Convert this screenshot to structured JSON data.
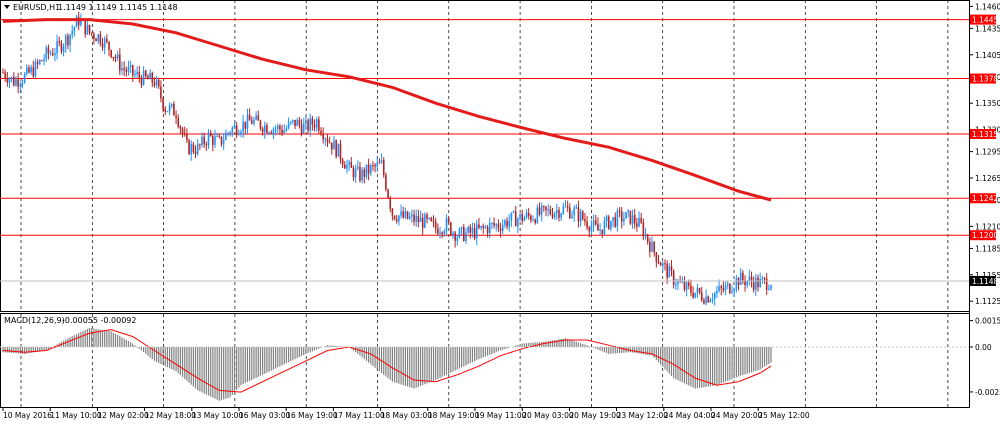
{
  "header": {
    "symbol": "EURUSD,H1",
    "ohlc": "1.1149 1.1149 1.1145 1.1148",
    "dropdown_icon": "triangle-down-icon"
  },
  "macd_header": {
    "label": "MACD(12,26,9)",
    "values": "-0.00055 -0.00092"
  },
  "colors": {
    "background": "#ffffff",
    "bull_candle": "#1e90ff",
    "bear_candle": "#b22222",
    "moving_average": "#e31b1b",
    "horizontal_levels": "#ff0000",
    "grid": "#000000",
    "histogram": "#808080",
    "signal_line": "#ff0000"
  },
  "price_axis": {
    "ticks": [
      "1.1460",
      "1.1435",
      "1.1405",
      "1.1380",
      "1.1350",
      "1.1320",
      "1.1295",
      "1.1265",
      "1.1240",
      "1.1210",
      "1.1185",
      "1.1155",
      "1.1125"
    ]
  },
  "level_tags": [
    "1.1445",
    "1.1378",
    "1.1315",
    "1.1242",
    "1.1200",
    "1.1148"
  ],
  "macd_axis": {
    "ticks": [
      "0.00152",
      "0.00",
      "-0.00259"
    ]
  },
  "time_axis": {
    "labels": [
      "10 May 2016",
      "11 May 10:00",
      "12 May 02:00",
      "12 May 18:00",
      "13 May 10:00",
      "16 May 03:00",
      "16 May 19:00",
      "17 May 11:00",
      "18 May 03:00",
      "18 May 19:00",
      "19 May 11:00",
      "20 May 03:00",
      "20 May 19:00",
      "23 May 12:00",
      "24 May 04:00",
      "24 May 20:00",
      "25 May 12:00"
    ]
  },
  "chart_data": {
    "type": "candlestick",
    "symbol": "EURUSD",
    "timeframe": "H1",
    "y_range": [
      1.1115,
      1.1465
    ],
    "horizontal_levels": [
      1.1445,
      1.1378,
      1.1315,
      1.1242,
      1.12
    ],
    "current_price": 1.1148,
    "close_path": [
      [
        0,
        1.1385
      ],
      [
        5,
        1.1375
      ],
      [
        10,
        1.138
      ],
      [
        15,
        1.139
      ],
      [
        20,
        1.1405
      ],
      [
        25,
        1.1412
      ],
      [
        30,
        1.1425
      ],
      [
        35,
        1.1445
      ],
      [
        40,
        1.143
      ],
      [
        45,
        1.1425
      ],
      [
        50,
        1.141
      ],
      [
        55,
        1.139
      ],
      [
        60,
        1.1383
      ],
      [
        65,
        1.1378
      ],
      [
        70,
        1.1375
      ],
      [
        75,
        1.1345
      ],
      [
        80,
        1.134
      ],
      [
        85,
        1.13
      ],
      [
        90,
        1.1298
      ],
      [
        95,
        1.1312
      ],
      [
        100,
        1.1305
      ],
      [
        105,
        1.132
      ],
      [
        110,
        1.1325
      ],
      [
        115,
        1.133
      ],
      [
        120,
        1.1325
      ],
      [
        125,
        1.1322
      ],
      [
        130,
        1.132
      ],
      [
        135,
        1.1328
      ],
      [
        140,
        1.1322
      ],
      [
        145,
        1.133
      ],
      [
        150,
        1.131
      ],
      [
        155,
        1.1295
      ],
      [
        160,
        1.1275
      ],
      [
        165,
        1.1268
      ],
      [
        170,
        1.1275
      ],
      [
        175,
        1.128
      ],
      [
        180,
        1.1225
      ],
      [
        185,
        1.122
      ],
      [
        190,
        1.1218
      ],
      [
        195,
        1.1215
      ],
      [
        200,
        1.1208
      ],
      [
        205,
        1.1212
      ],
      [
        210,
        1.12
      ],
      [
        215,
        1.1202
      ],
      [
        220,
        1.1205
      ],
      [
        225,
        1.121
      ],
      [
        230,
        1.1212
      ],
      [
        235,
        1.1218
      ],
      [
        240,
        1.122
      ],
      [
        245,
        1.1222
      ],
      [
        250,
        1.1225
      ],
      [
        255,
        1.1228
      ],
      [
        260,
        1.123
      ],
      [
        265,
        1.1225
      ],
      [
        270,
        1.1215
      ],
      [
        275,
        1.1205
      ],
      [
        280,
        1.1215
      ],
      [
        285,
        1.122
      ],
      [
        290,
        1.122
      ],
      [
        295,
        1.121
      ],
      [
        300,
        1.1185
      ],
      [
        305,
        1.1165
      ],
      [
        310,
        1.115
      ],
      [
        315,
        1.114
      ],
      [
        320,
        1.1135
      ],
      [
        325,
        1.113
      ],
      [
        330,
        1.1135
      ],
      [
        335,
        1.114
      ],
      [
        340,
        1.115
      ],
      [
        345,
        1.1148
      ],
      [
        350,
        1.1145
      ],
      [
        355,
        1.1148
      ]
    ],
    "moving_average": [
      [
        0,
        1.1443
      ],
      [
        20,
        1.1445
      ],
      [
        40,
        1.1445
      ],
      [
        60,
        1.144
      ],
      [
        80,
        1.143
      ],
      [
        100,
        1.1415
      ],
      [
        120,
        1.14
      ],
      [
        140,
        1.1388
      ],
      [
        160,
        1.138
      ],
      [
        180,
        1.1368
      ],
      [
        200,
        1.135
      ],
      [
        220,
        1.1335
      ],
      [
        240,
        1.1322
      ],
      [
        260,
        1.131
      ],
      [
        280,
        1.13
      ],
      [
        300,
        1.1285
      ],
      [
        320,
        1.1268
      ],
      [
        340,
        1.125
      ],
      [
        355,
        1.124
      ]
    ],
    "macd": {
      "range": [
        -0.0034,
        0.0019
      ],
      "histogram": [
        [
          0,
          -0.0003
        ],
        [
          10,
          -0.0004
        ],
        [
          20,
          -0.0002
        ],
        [
          30,
          0.0005
        ],
        [
          40,
          0.0011
        ],
        [
          50,
          0.0009
        ],
        [
          60,
          0.0002
        ],
        [
          70,
          -0.0008
        ],
        [
          80,
          -0.0014
        ],
        [
          90,
          -0.0025
        ],
        [
          100,
          -0.0031
        ],
        [
          105,
          -0.0029
        ],
        [
          110,
          -0.0022
        ],
        [
          120,
          -0.0016
        ],
        [
          130,
          -0.001
        ],
        [
          140,
          -0.0004
        ],
        [
          150,
          0.0001
        ],
        [
          160,
          0.0
        ],
        [
          170,
          -0.001
        ],
        [
          180,
          -0.002
        ],
        [
          190,
          -0.0024
        ],
        [
          200,
          -0.0019
        ],
        [
          210,
          -0.0013
        ],
        [
          220,
          -0.0007
        ],
        [
          230,
          -0.0002
        ],
        [
          240,
          0.0002
        ],
        [
          250,
          0.0003
        ],
        [
          260,
          0.0005
        ],
        [
          270,
          0.0001
        ],
        [
          280,
          -0.0004
        ],
        [
          290,
          -0.0003
        ],
        [
          300,
          -0.0005
        ],
        [
          310,
          -0.0018
        ],
        [
          320,
          -0.0024
        ],
        [
          330,
          -0.0022
        ],
        [
          340,
          -0.0017
        ],
        [
          350,
          -0.0013
        ],
        [
          355,
          -0.0009
        ]
      ],
      "signal": [
        [
          0,
          -0.0002
        ],
        [
          10,
          -0.0003
        ],
        [
          20,
          -0.0002
        ],
        [
          30,
          0.0003
        ],
        [
          40,
          0.0008
        ],
        [
          50,
          0.001
        ],
        [
          60,
          0.0006
        ],
        [
          70,
          -0.0002
        ],
        [
          80,
          -0.001
        ],
        [
          90,
          -0.0018
        ],
        [
          100,
          -0.0025
        ],
        [
          110,
          -0.0026
        ],
        [
          120,
          -0.002
        ],
        [
          130,
          -0.0014
        ],
        [
          140,
          -0.0008
        ],
        [
          150,
          -0.0002
        ],
        [
          160,
          0.0
        ],
        [
          170,
          -0.0004
        ],
        [
          180,
          -0.0012
        ],
        [
          190,
          -0.0019
        ],
        [
          200,
          -0.002
        ],
        [
          210,
          -0.0016
        ],
        [
          220,
          -0.0011
        ],
        [
          230,
          -0.0005
        ],
        [
          240,
          -0.0001
        ],
        [
          250,
          0.0002
        ],
        [
          260,
          0.0004
        ],
        [
          270,
          0.0004
        ],
        [
          280,
          0.0001
        ],
        [
          290,
          -0.0002
        ],
        [
          300,
          -0.0004
        ],
        [
          310,
          -0.001
        ],
        [
          320,
          -0.0018
        ],
        [
          330,
          -0.0022
        ],
        [
          340,
          -0.002
        ],
        [
          350,
          -0.0015
        ],
        [
          355,
          -0.0011
        ]
      ]
    }
  }
}
